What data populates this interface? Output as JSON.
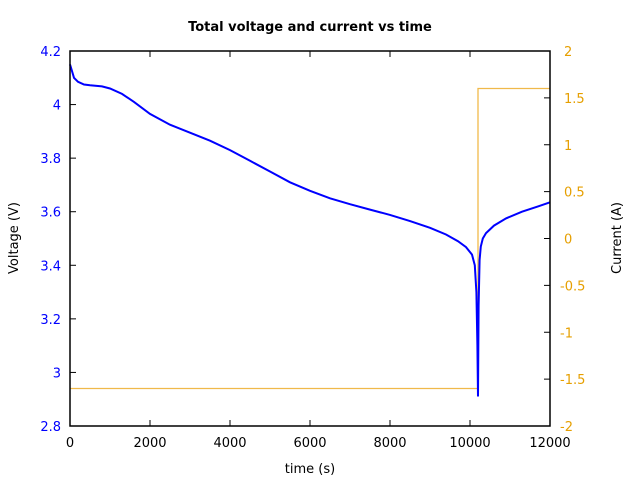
{
  "chart_data": {
    "type": "line",
    "title": "Total voltage and current vs time",
    "xlabel": "time (s)",
    "ylabel": "Voltage (V)",
    "y2label": "Current (A)",
    "xlim": [
      0,
      12000
    ],
    "ylim": [
      2.8,
      4.2
    ],
    "y2lim": [
      -2,
      2
    ],
    "x_ticks": [
      "0",
      "2000",
      "4000",
      "6000",
      "8000",
      "10000",
      "12000"
    ],
    "y_ticks": [
      "2.8",
      "3",
      "3.2",
      "3.4",
      "3.6",
      "3.8",
      "4",
      "4.2"
    ],
    "y2_ticks": [
      "-2",
      "-1.5",
      "-1",
      "-0.5",
      "0",
      "0.5",
      "1",
      "1.5",
      "2"
    ],
    "grid": false,
    "legend": null,
    "series": [
      {
        "name": "Voltage",
        "axis": "left",
        "color": "#0000ff",
        "x": [
          0,
          100,
          200,
          350,
          500,
          800,
          1000,
          1300,
          1600,
          2000,
          2500,
          3000,
          3500,
          4000,
          4500,
          5000,
          5500,
          6000,
          6500,
          7000,
          7500,
          8000,
          8500,
          9000,
          9400,
          9700,
          9900,
          10050,
          10120,
          10160,
          10185,
          10200,
          10215,
          10240,
          10270,
          10320,
          10400,
          10600,
          10900,
          11300,
          11700,
          12000
        ],
        "y": [
          4.15,
          4.1,
          4.085,
          4.075,
          4.072,
          4.068,
          4.06,
          4.04,
          4.01,
          3.965,
          3.925,
          3.895,
          3.865,
          3.83,
          3.79,
          3.75,
          3.71,
          3.678,
          3.65,
          3.628,
          3.608,
          3.588,
          3.565,
          3.54,
          3.515,
          3.49,
          3.468,
          3.44,
          3.4,
          3.3,
          3.1,
          2.91,
          3.25,
          3.42,
          3.47,
          3.5,
          3.52,
          3.548,
          3.575,
          3.6,
          3.62,
          3.635
        ]
      },
      {
        "name": "Current",
        "axis": "right",
        "color": "#e69f00",
        "x": [
          0,
          10200,
          10200,
          12000
        ],
        "y": [
          -1.6,
          -1.6,
          1.6,
          1.6
        ]
      }
    ]
  },
  "colors": {
    "voltage": "#0000ff",
    "current": "#f0b94a",
    "current_ticks": "#e69f00",
    "axes": "#000000"
  }
}
